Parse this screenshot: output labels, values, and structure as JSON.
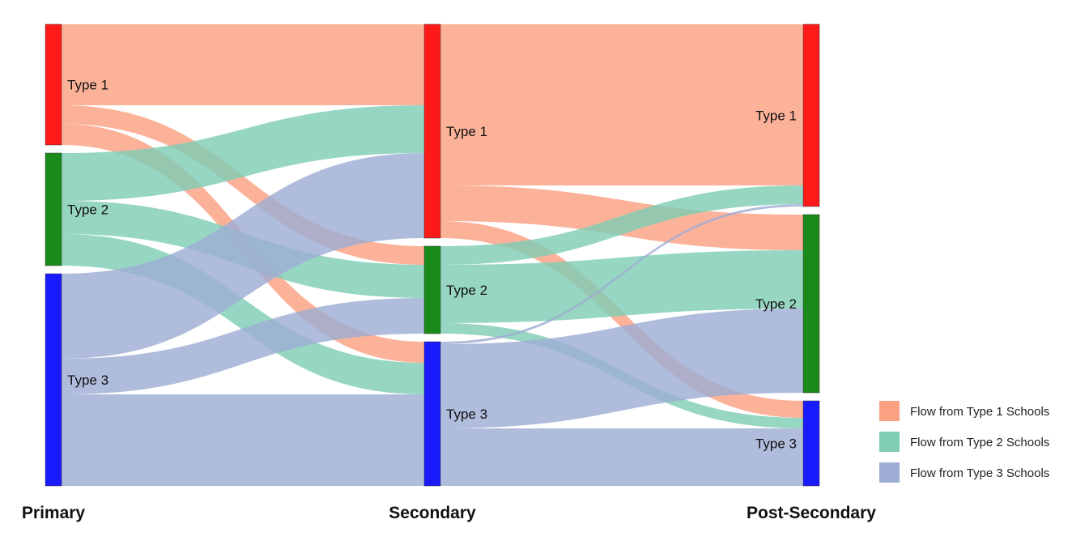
{
  "chart_data": {
    "type": "sankey",
    "stages": [
      "Primary",
      "Secondary",
      "Post-Secondary"
    ],
    "nodes": [
      {
        "stage": 0,
        "label": "Type 1",
        "color": "#ff1a1a"
      },
      {
        "stage": 0,
        "label": "Type 2",
        "color": "#1a8a1a"
      },
      {
        "stage": 0,
        "label": "Type 3",
        "color": "#1a1aff"
      },
      {
        "stage": 1,
        "label": "Type 1",
        "color": "#ff1a1a"
      },
      {
        "stage": 1,
        "label": "Type 2",
        "color": "#1a8a1a"
      },
      {
        "stage": 1,
        "label": "Type 3",
        "color": "#1a1aff"
      },
      {
        "stage": 2,
        "label": "Type 1",
        "color": "#ff1a1a"
      },
      {
        "stage": 2,
        "label": "Type 2",
        "color": "#1a8a1a"
      },
      {
        "stage": 2,
        "label": "Type 3",
        "color": "#1a1aff"
      }
    ],
    "links": [
      {
        "source": 0,
        "target": 3,
        "value": 100,
        "flow": 0
      },
      {
        "source": 0,
        "target": 4,
        "value": 23,
        "flow": 0
      },
      {
        "source": 0,
        "target": 5,
        "value": 26,
        "flow": 0
      },
      {
        "source": 1,
        "target": 3,
        "value": 59,
        "flow": 1
      },
      {
        "source": 1,
        "target": 4,
        "value": 41,
        "flow": 1
      },
      {
        "source": 1,
        "target": 5,
        "value": 39,
        "flow": 1
      },
      {
        "source": 2,
        "target": 3,
        "value": 105,
        "flow": 2
      },
      {
        "source": 2,
        "target": 4,
        "value": 44,
        "flow": 2
      },
      {
        "source": 2,
        "target": 5,
        "value": 113,
        "flow": 2
      },
      {
        "source": 3,
        "target": 6,
        "value": 199,
        "flow": 0
      },
      {
        "source": 3,
        "target": 7,
        "value": 44,
        "flow": 0
      },
      {
        "source": 3,
        "target": 8,
        "value": 21,
        "flow": 0
      },
      {
        "source": 4,
        "target": 6,
        "value": 23,
        "flow": 1
      },
      {
        "source": 4,
        "target": 7,
        "value": 72,
        "flow": 1
      },
      {
        "source": 4,
        "target": 8,
        "value": 13,
        "flow": 1
      },
      {
        "source": 5,
        "target": 6,
        "value": 3,
        "flow": 2
      },
      {
        "source": 5,
        "target": 7,
        "value": 104,
        "flow": 2
      },
      {
        "source": 5,
        "target": 8,
        "value": 71,
        "flow": 2
      }
    ],
    "legend": {
      "position": "bottom-right",
      "items": [
        {
          "label": "Flow from Type 1 Schools",
          "color": "#fba183"
        },
        {
          "label": "Flow from Type 2 Schools",
          "color": "#7fcdb4"
        },
        {
          "label": "Flow from Type 3 Schools",
          "color": "#9eadd3"
        }
      ]
    }
  }
}
